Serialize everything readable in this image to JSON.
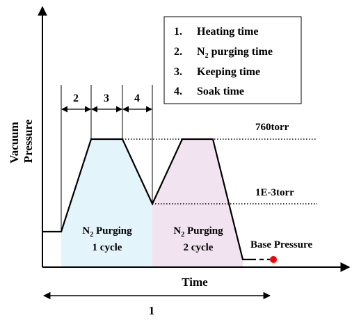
{
  "legend": {
    "items": [
      {
        "num": "1.",
        "label": "Heating time",
        "parts": [
          "Heating time"
        ]
      },
      {
        "num": "2.",
        "label": "N2 purging time",
        "parts": [
          "N",
          "2",
          " purging time"
        ]
      },
      {
        "num": "3.",
        "label": "Keeping time",
        "parts": [
          "Keeping time"
        ]
      },
      {
        "num": "4.",
        "label": "Soak time",
        "parts": [
          "Soak time"
        ]
      }
    ]
  },
  "segments": {
    "s2": "2",
    "s3": "3",
    "s4": "4"
  },
  "levels": {
    "high": "760torr",
    "low": "1E-3torr",
    "base": "Base Pressure"
  },
  "regions": {
    "cycle1": {
      "line1_parts": [
        "N",
        "2",
        " Purging"
      ],
      "line2": "1 cycle"
    },
    "cycle2": {
      "line1_parts": [
        "N",
        "2",
        " Purging"
      ],
      "line2": "2 cycle"
    }
  },
  "axes": {
    "y_label_line1": "Vacuum",
    "y_label_line2": "Pressure",
    "x_label": "Time"
  },
  "duration": {
    "label": "1"
  },
  "colors": {
    "cycle1_fill": "#e4f4fb",
    "cycle2_fill": "#f1e3ef",
    "marker": "#ff0000",
    "stroke": "#000000"
  }
}
